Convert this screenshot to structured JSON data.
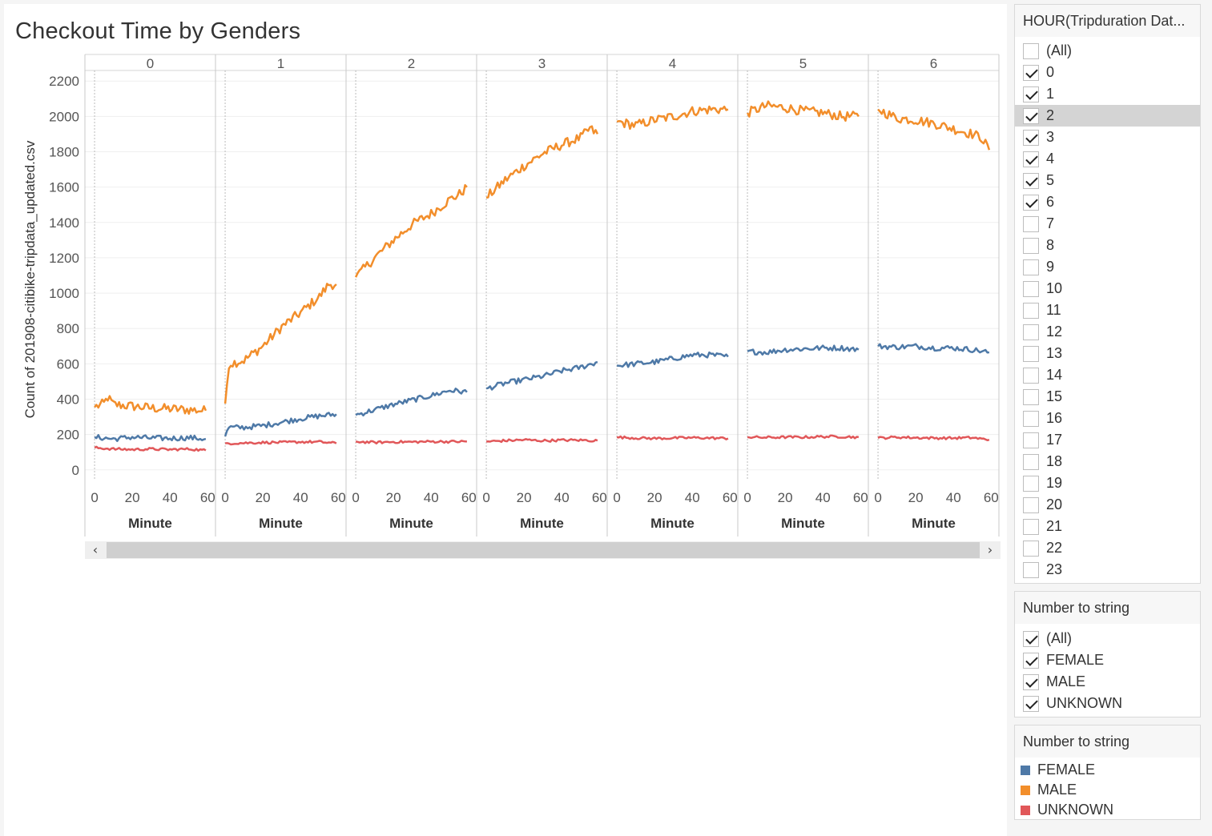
{
  "chart_data": {
    "type": "line",
    "title": "Checkout Time by Genders",
    "ylabel": "Count of 201908-citibike-tripdata_updated.csv",
    "xlabel": "Minute",
    "ylim": [
      -60,
      2260
    ],
    "xlim": [
      -3,
      62
    ],
    "yticks": [
      0,
      200,
      400,
      600,
      800,
      1000,
      1200,
      1400,
      1600,
      1800,
      2000,
      2200
    ],
    "xticks": [
      0,
      20,
      40,
      60
    ],
    "panels": [
      "0",
      "1",
      "2",
      "3",
      "4",
      "5",
      "6"
    ],
    "colors": {
      "FEMALE": "#4e79a7",
      "MALE": "#f28e2b",
      "UNKNOWN": "#e15759"
    },
    "series": [
      {
        "name": "MALE",
        "anchors": [
          [
            [
              0,
              355
            ],
            [
              5,
              375
            ],
            [
              7,
              410
            ],
            [
              10,
              370
            ],
            [
              20,
              360
            ],
            [
              30,
              350
            ],
            [
              40,
              345
            ],
            [
              50,
              340
            ],
            [
              59,
              335
            ]
          ],
          [
            [
              0,
              375
            ],
            [
              2,
              600
            ],
            [
              10,
              620
            ],
            [
              20,
              700
            ],
            [
              30,
              810
            ],
            [
              40,
              890
            ],
            [
              50,
              980
            ],
            [
              55,
              1050
            ],
            [
              59,
              1050
            ]
          ],
          [
            [
              0,
              1090
            ],
            [
              10,
              1200
            ],
            [
              20,
              1300
            ],
            [
              30,
              1390
            ],
            [
              40,
              1450
            ],
            [
              50,
              1530
            ],
            [
              55,
              1560
            ],
            [
              59,
              1600
            ]
          ],
          [
            [
              0,
              1540
            ],
            [
              10,
              1640
            ],
            [
              20,
              1720
            ],
            [
              30,
              1790
            ],
            [
              40,
              1840
            ],
            [
              50,
              1880
            ],
            [
              55,
              1930
            ],
            [
              59,
              1900
            ]
          ],
          [
            [
              0,
              1970
            ],
            [
              10,
              1950
            ],
            [
              20,
              1980
            ],
            [
              30,
              2000
            ],
            [
              40,
              2030
            ],
            [
              50,
              2040
            ],
            [
              59,
              2040
            ]
          ],
          [
            [
              0,
              2020
            ],
            [
              10,
              2060
            ],
            [
              20,
              2050
            ],
            [
              30,
              2030
            ],
            [
              40,
              2020
            ],
            [
              50,
              2000
            ],
            [
              59,
              2000
            ]
          ],
          [
            [
              0,
              2040
            ],
            [
              10,
              1990
            ],
            [
              20,
              1980
            ],
            [
              30,
              1960
            ],
            [
              40,
              1930
            ],
            [
              50,
              1900
            ],
            [
              55,
              1880
            ],
            [
              59,
              1810
            ]
          ]
        ]
      },
      {
        "name": "FEMALE",
        "anchors": [
          [
            [
              0,
              185
            ],
            [
              10,
              175
            ],
            [
              20,
              185
            ],
            [
              30,
              180
            ],
            [
              40,
              178
            ],
            [
              50,
              182
            ],
            [
              59,
              175
            ]
          ],
          [
            [
              0,
              190
            ],
            [
              2,
              240
            ],
            [
              10,
              240
            ],
            [
              20,
              250
            ],
            [
              30,
              270
            ],
            [
              40,
              290
            ],
            [
              50,
              305
            ],
            [
              59,
              315
            ]
          ],
          [
            [
              0,
              310
            ],
            [
              10,
              340
            ],
            [
              20,
              370
            ],
            [
              30,
              395
            ],
            [
              40,
              420
            ],
            [
              50,
              450
            ],
            [
              59,
              440
            ]
          ],
          [
            [
              0,
              460
            ],
            [
              10,
              490
            ],
            [
              20,
              510
            ],
            [
              30,
              530
            ],
            [
              40,
              560
            ],
            [
              50,
              580
            ],
            [
              59,
              610
            ]
          ],
          [
            [
              0,
              590
            ],
            [
              10,
              600
            ],
            [
              20,
              610
            ],
            [
              30,
              630
            ],
            [
              40,
              650
            ],
            [
              50,
              650
            ],
            [
              59,
              640
            ]
          ],
          [
            [
              0,
              670
            ],
            [
              10,
              665
            ],
            [
              20,
              680
            ],
            [
              30,
              685
            ],
            [
              40,
              690
            ],
            [
              50,
              690
            ],
            [
              59,
              680
            ]
          ],
          [
            [
              0,
              700
            ],
            [
              10,
              695
            ],
            [
              20,
              700
            ],
            [
              30,
              690
            ],
            [
              40,
              690
            ],
            [
              50,
              680
            ],
            [
              59,
              665
            ]
          ]
        ]
      },
      {
        "name": "UNKNOWN",
        "anchors": [
          [
            [
              0,
              125
            ],
            [
              10,
              118
            ],
            [
              20,
              115
            ],
            [
              30,
              118
            ],
            [
              40,
              115
            ],
            [
              50,
              118
            ],
            [
              59,
              110
            ]
          ],
          [
            [
              0,
              150
            ],
            [
              10,
              152
            ],
            [
              20,
              155
            ],
            [
              30,
              155
            ],
            [
              40,
              158
            ],
            [
              50,
              158
            ],
            [
              59,
              150
            ]
          ],
          [
            [
              0,
              160
            ],
            [
              10,
              155
            ],
            [
              20,
              158
            ],
            [
              30,
              158
            ],
            [
              40,
              160
            ],
            [
              50,
              160
            ],
            [
              59,
              160
            ]
          ],
          [
            [
              0,
              160
            ],
            [
              10,
              165
            ],
            [
              20,
              170
            ],
            [
              30,
              165
            ],
            [
              40,
              168
            ],
            [
              50,
              168
            ],
            [
              59,
              165
            ]
          ],
          [
            [
              0,
              185
            ],
            [
              10,
              180
            ],
            [
              20,
              178
            ],
            [
              30,
              180
            ],
            [
              40,
              182
            ],
            [
              50,
              180
            ],
            [
              59,
              178
            ]
          ],
          [
            [
              0,
              185
            ],
            [
              10,
              183
            ],
            [
              20,
              185
            ],
            [
              30,
              185
            ],
            [
              40,
              188
            ],
            [
              50,
              188
            ],
            [
              59,
              185
            ]
          ],
          [
            [
              0,
              180
            ],
            [
              10,
              185
            ],
            [
              20,
              182
            ],
            [
              30,
              180
            ],
            [
              40,
              180
            ],
            [
              50,
              182
            ],
            [
              59,
              170
            ]
          ]
        ]
      }
    ]
  },
  "filter_hour": {
    "title": "HOUR(Tripduration Dat...",
    "items": [
      {
        "label": "(All)",
        "checked": false
      },
      {
        "label": "0",
        "checked": true
      },
      {
        "label": "1",
        "checked": true
      },
      {
        "label": "2",
        "checked": true,
        "highlight": true
      },
      {
        "label": "3",
        "checked": true
      },
      {
        "label": "4",
        "checked": true
      },
      {
        "label": "5",
        "checked": true
      },
      {
        "label": "6",
        "checked": true
      },
      {
        "label": "7",
        "checked": false
      },
      {
        "label": "8",
        "checked": false
      },
      {
        "label": "9",
        "checked": false
      },
      {
        "label": "10",
        "checked": false
      },
      {
        "label": "11",
        "checked": false
      },
      {
        "label": "12",
        "checked": false
      },
      {
        "label": "13",
        "checked": false
      },
      {
        "label": "14",
        "checked": false
      },
      {
        "label": "15",
        "checked": false
      },
      {
        "label": "16",
        "checked": false
      },
      {
        "label": "17",
        "checked": false
      },
      {
        "label": "18",
        "checked": false
      },
      {
        "label": "19",
        "checked": false
      },
      {
        "label": "20",
        "checked": false
      },
      {
        "label": "21",
        "checked": false
      },
      {
        "label": "22",
        "checked": false
      },
      {
        "label": "23",
        "checked": false
      }
    ]
  },
  "filter_gender": {
    "title": "Number to string",
    "items": [
      {
        "label": "(All)",
        "checked": true
      },
      {
        "label": "FEMALE",
        "checked": true
      },
      {
        "label": "MALE",
        "checked": true
      },
      {
        "label": "UNKNOWN",
        "checked": true
      }
    ]
  },
  "legend": {
    "title": "Number to string",
    "items": [
      {
        "label": "FEMALE",
        "color": "#4e79a7"
      },
      {
        "label": "MALE",
        "color": "#f28e2b"
      },
      {
        "label": "UNKNOWN",
        "color": "#e15759"
      }
    ]
  },
  "scrollbar": {
    "left_icon": "chevron-left-icon",
    "right_icon": "chevron-right-icon",
    "left_glyph": "‹",
    "right_glyph": "›"
  }
}
